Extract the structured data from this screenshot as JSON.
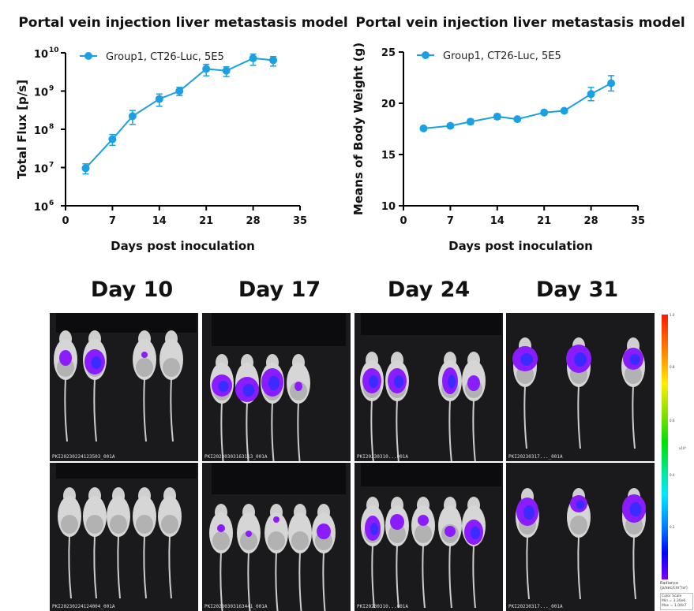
{
  "chart_data": [
    {
      "type": "line",
      "title": "Portal vein injection liver metastasis model",
      "xlabel": "Days post inoculation",
      "ylabel": "Total Flux [p/s]",
      "yscale": "log",
      "xlim": [
        0,
        35
      ],
      "ylim": [
        1000000,
        10000000000
      ],
      "xticks": [
        "0",
        "7",
        "14",
        "21",
        "28",
        "35"
      ],
      "yticks": [
        {
          "base": "10",
          "exp": "6"
        },
        {
          "base": "10",
          "exp": "7"
        },
        {
          "base": "10",
          "exp": "8"
        },
        {
          "base": "10",
          "exp": "9"
        },
        {
          "base": "10",
          "exp": "10"
        }
      ],
      "legend_position": "top-left",
      "grid": false,
      "series": [
        {
          "name": "Group1, CT26-Luc, 5E5",
          "color": "#1ba1e2",
          "x": [
            3,
            7,
            10,
            14,
            17,
            21,
            24,
            28,
            31
          ],
          "y": [
            9600000.0,
            55000000.0,
            220000000.0,
            620000000.0,
            1000000000.0,
            3800000000.0,
            3400000000.0,
            7200000000.0,
            6400000000.0
          ],
          "err_low": [
            6800000.0,
            38000000.0,
            135000000.0,
            400000000.0,
            760000000.0,
            2500000000.0,
            2400000000.0,
            4700000000.0,
            4500000000.0
          ],
          "err_high": [
            12500000.0,
            73000000.0,
            310000000.0,
            840000000.0,
            1250000000.0,
            5000000000.0,
            4300000000.0,
            9300000000.0,
            8000000000.0
          ]
        }
      ]
    },
    {
      "type": "line",
      "title": "Portal vein injection liver metastasis model",
      "xlabel": "Days post inoculation",
      "ylabel": "Means of Body Weight (g)",
      "yscale": "linear",
      "xlim": [
        0,
        35
      ],
      "ylim": [
        10,
        25
      ],
      "xticks": [
        "0",
        "7",
        "14",
        "21",
        "28",
        "35"
      ],
      "yticks": [
        {
          "base": "10"
        },
        {
          "base": "15"
        },
        {
          "base": "20"
        },
        {
          "base": "25"
        }
      ],
      "legend_position": "top-left",
      "grid": false,
      "series": [
        {
          "name": "Group1, CT26-Luc, 5E5",
          "color": "#1ba1e2",
          "x": [
            3,
            7,
            10,
            14,
            17,
            21,
            24,
            28,
            31
          ],
          "y": [
            17.55,
            17.8,
            18.2,
            18.7,
            18.45,
            19.1,
            19.27,
            20.9,
            21.95
          ],
          "err": [
            0.1,
            0.2,
            0.25,
            0.25,
            0.1,
            0.1,
            0.1,
            0.65,
            0.75
          ]
        }
      ]
    }
  ],
  "imaging": {
    "days": [
      "Day 10",
      "Day 17",
      "Day 24",
      "Day 31"
    ],
    "panel_ids": [
      "PKI20230224123503_001A",
      "PKI20230303163113_001A",
      "PKI20230310...001A",
      "PKI20230317..._001A",
      "PKI20230224124004_001A",
      "PKI20230303163441_001A",
      "PKI20230310...001A",
      "PKI20230317..._001A"
    ],
    "colorbar": {
      "ticks": [
        "1.0",
        "0.8",
        "0.6",
        "0.4",
        "0.2"
      ],
      "multiplier": "x10⁷",
      "unit_label": "Radiance",
      "unit": "(p/sec/cm²/sr)",
      "scale_title": "Color Scale",
      "min": "Min = 3.30e6",
      "max": "Max = 1.00e7"
    }
  }
}
